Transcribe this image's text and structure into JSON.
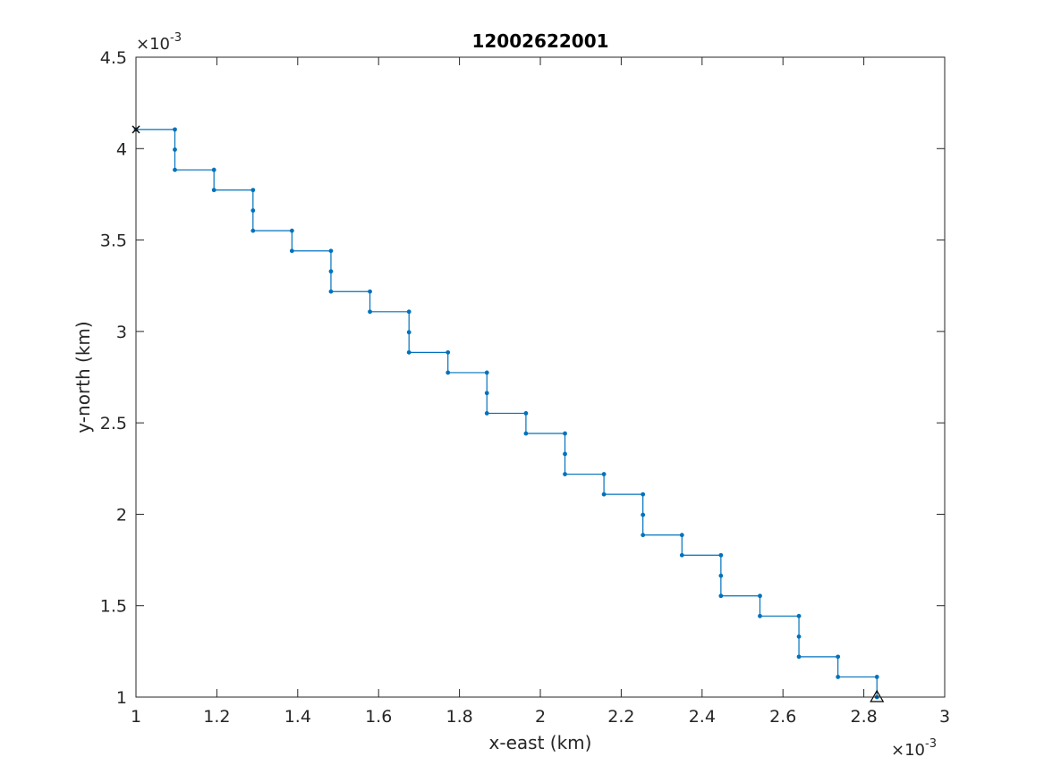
{
  "chart_data": {
    "type": "line",
    "title": "12002622001",
    "xlabel": "x-east (km)",
    "ylabel": "y-north (km)",
    "x_exponent_label": "×10",
    "x_exponent_power": "-3",
    "y_exponent_label": "×10",
    "y_exponent_power": "-3",
    "xlim": [
      1.0,
      3.0
    ],
    "ylim": [
      1.0,
      4.5
    ],
    "x_ticks": [
      "1",
      "1.2",
      "1.4",
      "1.6",
      "1.8",
      "2",
      "2.2",
      "2.4",
      "2.6",
      "2.8",
      "3"
    ],
    "y_ticks": [
      "1",
      "1.5",
      "2",
      "2.5",
      "3",
      "3.5",
      "4",
      "4.5"
    ],
    "grid": false,
    "legend": "none",
    "line_color": "#0072BD",
    "series": [
      {
        "x": [
          1.0,
          1.0962,
          1.0962,
          1.0962,
          1.1929,
          1.1929,
          1.2894,
          1.2894,
          1.2894,
          1.3857,
          1.3857,
          1.4822,
          1.4822,
          1.4822,
          1.5786,
          1.5786,
          1.6752,
          1.6752,
          1.6752,
          1.7715,
          1.7715,
          1.8678,
          1.8678,
          1.8678,
          1.9644,
          1.9644,
          2.0609,
          2.0609,
          2.0609,
          2.1573,
          2.1573,
          2.2537,
          2.2537,
          2.2537,
          2.3502,
          2.3502,
          2.4466,
          2.4466,
          2.4466,
          2.5431,
          2.5431,
          2.6395,
          2.6395,
          2.6395,
          2.736,
          2.736,
          2.8324,
          2.8324
        ],
        "y": [
          4.1047,
          4.1047,
          3.9943,
          3.8839,
          3.8839,
          3.7735,
          3.7735,
          3.6614,
          3.551,
          3.551,
          3.4406,
          3.4406,
          3.3285,
          3.2181,
          3.2181,
          3.1077,
          3.1077,
          2.9956,
          2.8852,
          2.8852,
          2.7748,
          2.7748,
          2.6627,
          2.5523,
          2.5523,
          2.4419,
          2.4419,
          2.3298,
          2.2194,
          2.2194,
          2.109,
          2.109,
          1.9969,
          1.8865,
          1.8865,
          1.7761,
          1.7761,
          1.664,
          1.5536,
          1.5536,
          1.4432,
          1.4432,
          1.3311,
          1.2207,
          1.2207,
          1.1103,
          1.1103,
          1.0
        ]
      }
    ],
    "start_marker": "x",
    "end_marker": "triangle"
  }
}
